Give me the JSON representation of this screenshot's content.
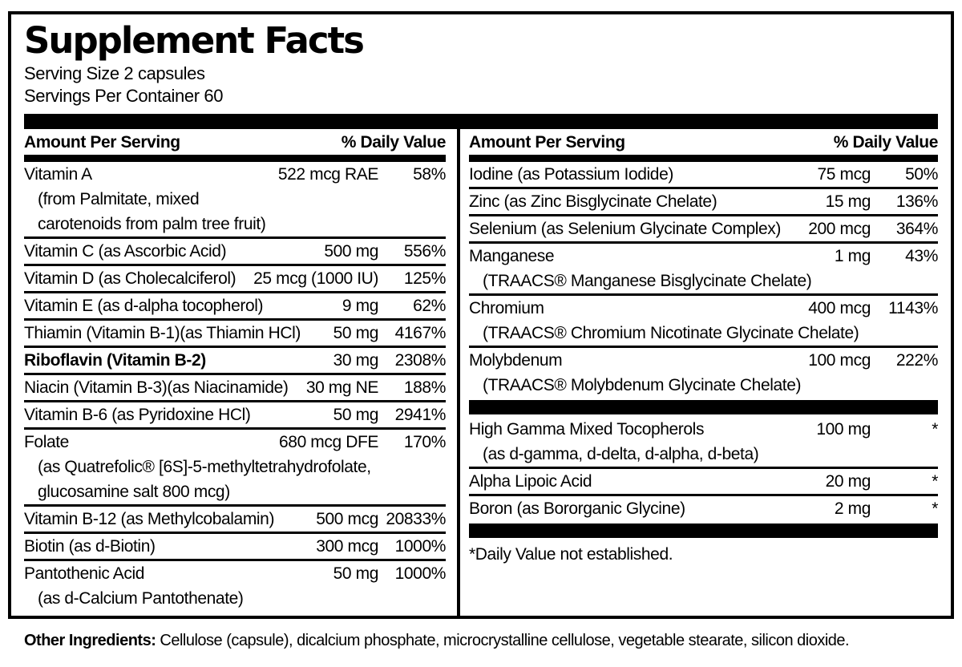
{
  "colors": {
    "ink": "#000000",
    "background": "#ffffff"
  },
  "label": {
    "title": "Supplement Facts",
    "serving_size": "Serving Size 2 capsules",
    "servings_per_container": "Servings Per Container 60",
    "column_header": {
      "amount": "Amount Per Serving",
      "daily_value": "% Daily Value"
    },
    "left_rows": [
      {
        "name": "Vitamin A",
        "amount": "522 mcg RAE",
        "dv": "58%",
        "sub": [
          "(from Palmitate, mixed",
          "carotenoids from palm tree fruit)"
        ]
      },
      {
        "name": "Vitamin C (as Ascorbic Acid)",
        "amount": "500 mg",
        "dv": "556%"
      },
      {
        "name": "Vitamin D (as Cholecalciferol)",
        "amount": "25 mcg (1000 IU)",
        "dv": "125%"
      },
      {
        "name": "Vitamin E (as d-alpha tocopherol)",
        "amount": "9 mg",
        "dv": "62%"
      },
      {
        "name": "Thiamin (Vitamin B-1)(as Thiamin HCl)",
        "amount": "50 mg",
        "dv": "4167%"
      },
      {
        "name": "Riboflavin (Vitamin B-2)",
        "amount": "30 mg",
        "dv": "2308%",
        "bold": true
      },
      {
        "name": "Niacin (Vitamin B-3)(as Niacinamide)",
        "amount": "30 mg NE",
        "dv": "188%"
      },
      {
        "name": "Vitamin B-6 (as Pyridoxine HCl)",
        "amount": "50 mg",
        "dv": "2941%"
      },
      {
        "name": "Folate",
        "amount": "680 mcg DFE",
        "dv": "170%",
        "sub": [
          "(as Quatrefolic® [6S]-5-methyltetrahydrofolate,",
          "glucosamine salt 800 mcg)"
        ]
      },
      {
        "name": "Vitamin B-12 (as Methylcobalamin)",
        "amount": "500 mcg",
        "dv": "20833%"
      },
      {
        "name": "Biotin (as d-Biotin)",
        "amount": "300 mcg",
        "dv": "1000%"
      },
      {
        "name": "Pantothenic Acid",
        "amount": "50 mg",
        "dv": "1000%",
        "sub": [
          "(as d-Calcium Pantothenate)"
        ]
      }
    ],
    "right_rows": [
      {
        "name": "Iodine (as Potassium Iodide)",
        "amount": "75 mcg",
        "dv": "50%"
      },
      {
        "name": "Zinc (as Zinc Bisglycinate Chelate)",
        "amount": "15 mg",
        "dv": "136%"
      },
      {
        "name": "Selenium (as Selenium Glycinate Complex)",
        "amount": "200 mcg",
        "dv": "364%"
      },
      {
        "name": "Manganese",
        "amount": "1 mg",
        "dv": "43%",
        "sub": [
          "(TRAACS® Manganese Bisglycinate Chelate)"
        ]
      },
      {
        "name": "Chromium",
        "amount": "400 mcg",
        "dv": "1143%",
        "sub": [
          "(TRAACS® Chromium Nicotinate Glycinate Chelate)"
        ]
      },
      {
        "name": "Molybdenum",
        "amount": "100 mcg",
        "dv": "222%",
        "sub": [
          "(TRAACS® Molybdenum Glycinate Chelate)"
        ]
      }
    ],
    "right_rows_no_dv": [
      {
        "name": "High Gamma Mixed Tocopherols",
        "amount": "100 mg",
        "dv": "*",
        "sub": [
          "(as d-gamma, d-delta, d-alpha, d-beta)"
        ]
      },
      {
        "name": "Alpha Lipoic Acid",
        "amount": "20 mg",
        "dv": "*"
      },
      {
        "name": "Boron (as Bororganic Glycine)",
        "amount": "2 mg",
        "dv": "*"
      }
    ],
    "footnote": "*Daily Value not established.",
    "other_ingredients_label": "Other Ingredients:",
    "other_ingredients_text": " Cellulose (capsule), dicalcium phosphate, microcrystalline cellulose, vegetable stearate, silicon dioxide."
  }
}
